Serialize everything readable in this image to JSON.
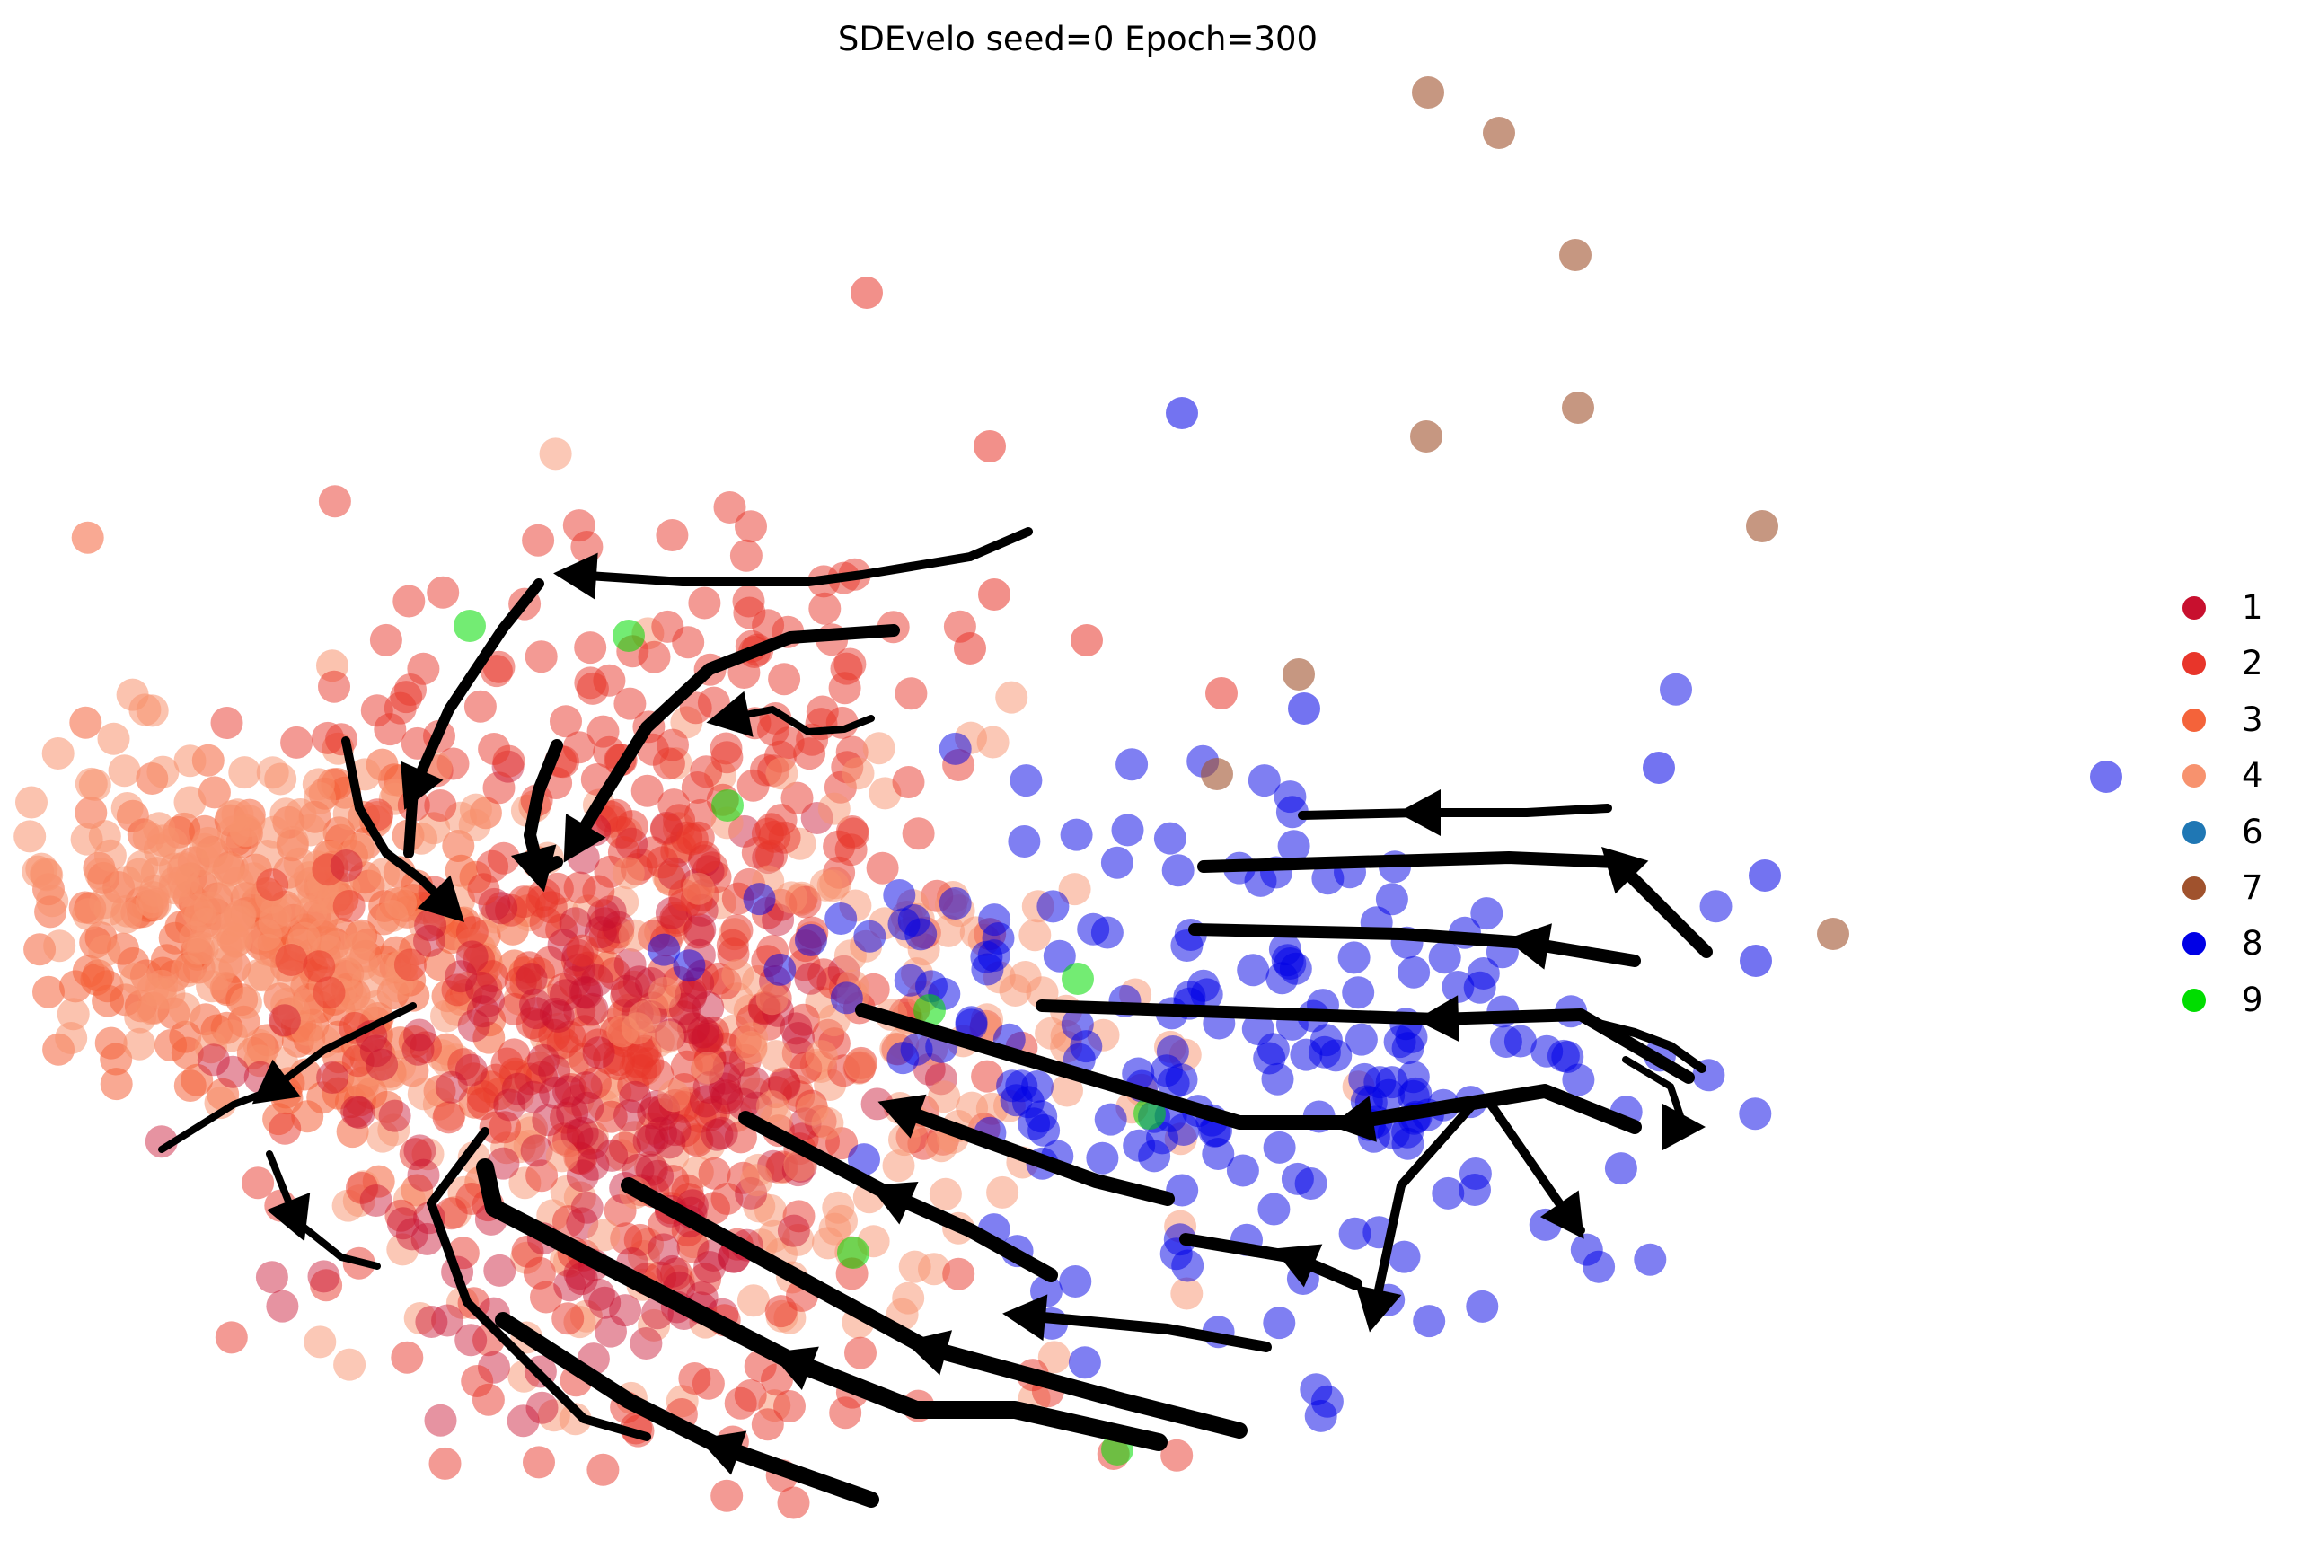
{
  "chart_data": {
    "type": "scatter",
    "title": "SDEvelo seed=0 Epoch=300",
    "xlabel": "",
    "ylabel": "",
    "grid": false,
    "axes_visible": false,
    "legend_placement": "right",
    "overlay": "velocity stream arrows (black)",
    "series": [
      {
        "name": "1",
        "color": "#c8102e"
      },
      {
        "name": "2",
        "color": "#e8352a"
      },
      {
        "name": "3",
        "color": "#f4633a"
      },
      {
        "name": "4",
        "color": "#f7926e"
      },
      {
        "name": "6",
        "color": "#1f77b4"
      },
      {
        "name": "7",
        "color": "#a0522d"
      },
      {
        "name": "8",
        "color": "#0000e6"
      },
      {
        "name": "9",
        "color": "#00dd00"
      }
    ]
  }
}
